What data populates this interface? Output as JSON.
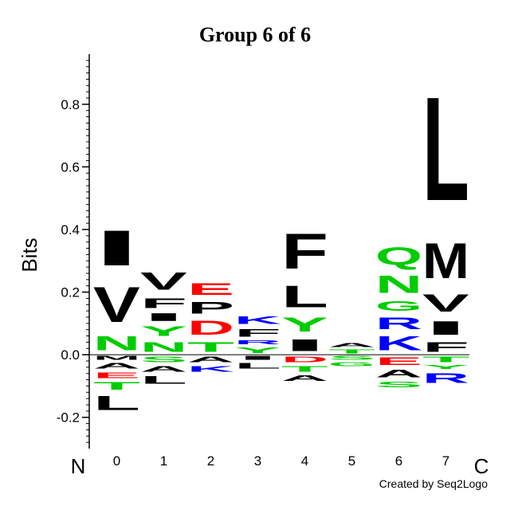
{
  "chart_data": {
    "type": "sequence_logo",
    "title": "Group 6 of 6",
    "ylabel": "Bits",
    "n_terminus_label": "N",
    "c_terminus_label": "C",
    "credit": "Created by Seq2Logo",
    "ylim": [
      -0.3,
      0.96
    ],
    "yticks": [
      "-0.2",
      "0.0",
      "0.2",
      "0.4",
      "0.6",
      "0.8"
    ],
    "ytick_values": [
      -0.2,
      0.0,
      0.2,
      0.4,
      0.6,
      0.8
    ],
    "positions": [
      "0",
      "1",
      "2",
      "3",
      "4",
      "5",
      "6",
      "7"
    ],
    "colors": {
      "hydrophobic": "#000000",
      "acidic": "#ff0000",
      "basic": "#0000ff",
      "polar": "#00cc00"
    },
    "columns": [
      {
        "position": "0",
        "positive": [
          [
            "N",
            0.07
          ],
          [
            "V",
            0.18
          ],
          [
            "I",
            0.18
          ]
        ],
        "negative": [
          [
            "M",
            0.02
          ],
          [
            "A",
            0.03
          ],
          [
            "E",
            0.03
          ],
          [
            "T",
            0.04
          ],
          [
            "L",
            0.07
          ]
        ]
      },
      {
        "position": "1",
        "positive": [
          [
            "N",
            0.05
          ],
          [
            "Y",
            0.05
          ],
          [
            "I",
            0.04
          ],
          [
            "F",
            0.05
          ],
          [
            "V",
            0.09
          ]
        ],
        "negative": [
          [
            "S",
            0.03
          ],
          [
            "A",
            0.03
          ],
          [
            "L",
            0.04
          ]
        ]
      },
      {
        "position": "2",
        "positive": [
          [
            "T",
            0.05
          ],
          [
            "D",
            0.07
          ],
          [
            "P",
            0.06
          ],
          [
            "E",
            0.06
          ]
        ],
        "negative": [
          [
            "A",
            0.03
          ],
          [
            "K",
            0.03
          ]
        ]
      },
      {
        "position": "3",
        "positive": [
          [
            "Y",
            0.03
          ],
          [
            "R",
            0.02
          ],
          [
            "F",
            0.04
          ],
          [
            "K",
            0.04
          ]
        ],
        "negative": [
          [
            "I",
            0.02
          ],
          [
            "L",
            0.03
          ]
        ]
      },
      {
        "position": "4",
        "positive": [
          [
            "I",
            0.06
          ],
          [
            "Y",
            0.07
          ],
          [
            "L",
            0.11
          ],
          [
            "F",
            0.18
          ]
        ],
        "negative": [
          [
            "D",
            0.03
          ],
          [
            "T",
            0.03
          ],
          [
            "A",
            0.03
          ]
        ]
      },
      {
        "position": "5",
        "positive": [
          [
            "T",
            0.02
          ],
          [
            "A",
            0.02
          ]
        ],
        "negative": [
          [
            "S",
            0.02
          ],
          [
            "G",
            0.02
          ]
        ]
      },
      {
        "position": "6",
        "positive": [
          [
            "K",
            0.07
          ],
          [
            "R",
            0.06
          ],
          [
            "G",
            0.05
          ],
          [
            "N",
            0.09
          ],
          [
            "Q",
            0.09
          ]
        ],
        "negative": [
          [
            "E",
            0.04
          ],
          [
            "A",
            0.04
          ],
          [
            "S",
            0.03
          ]
        ]
      },
      {
        "position": "7",
        "positive": [
          [
            "F",
            0.05
          ],
          [
            "I",
            0.07
          ],
          [
            "V",
            0.09
          ],
          [
            "M",
            0.18
          ],
          [
            "L",
            0.53
          ]
        ],
        "negative": [
          [
            "T",
            0.03
          ],
          [
            "Y",
            0.02
          ],
          [
            "R",
            0.05
          ]
        ]
      }
    ]
  }
}
